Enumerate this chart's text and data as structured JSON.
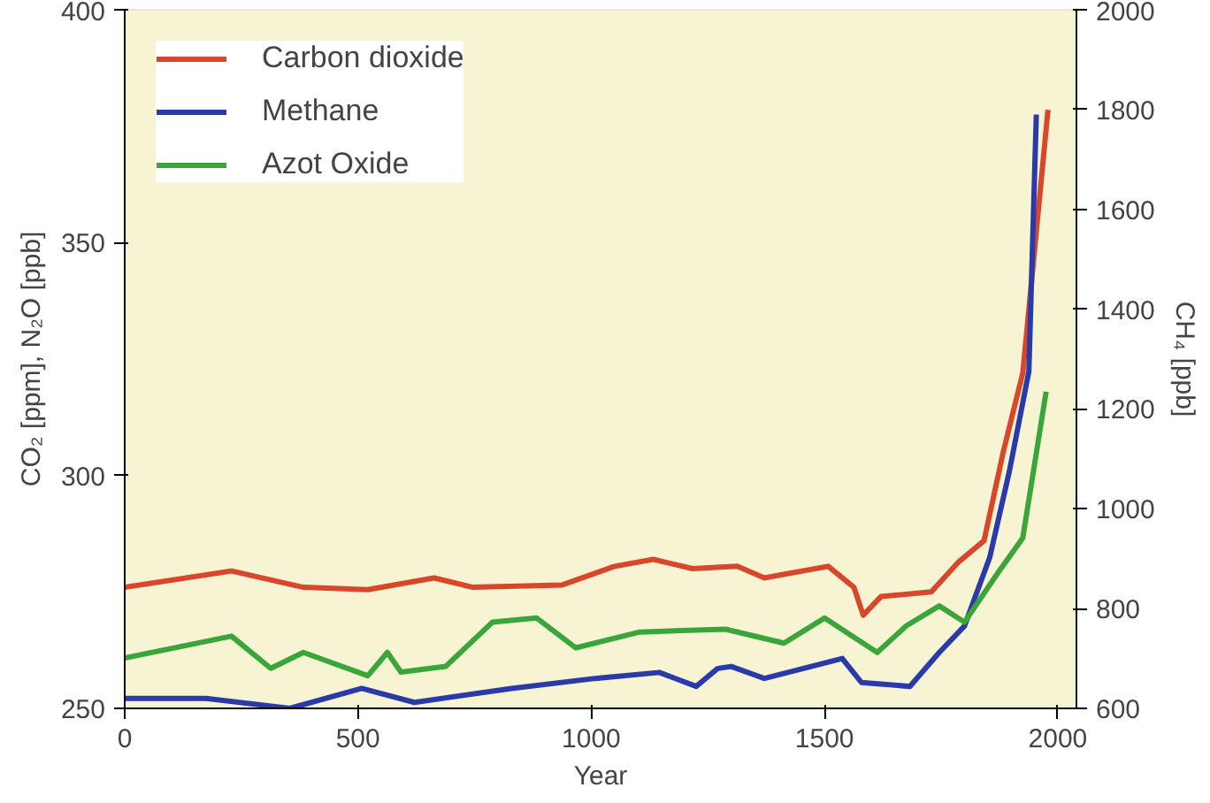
{
  "chart_data": {
    "type": "line",
    "xlabel": "Year",
    "ylabel": "CO₂ [ppm], N₂O [ppb]",
    "y2label": "CH₄ [ppb]",
    "xlim": [
      0,
      2040
    ],
    "xticks": [
      0,
      500,
      1000,
      1500,
      2000
    ],
    "ylim": [
      250,
      400
    ],
    "yticks": [
      250,
      300,
      350,
      400
    ],
    "y2lim": [
      600,
      2000
    ],
    "y2ticks": [
      600,
      800,
      1000,
      1200,
      1400,
      1600,
      1800,
      2000
    ],
    "grid": false,
    "legend": "top left",
    "marker": "none",
    "line_style": "solid",
    "series": [
      {
        "name": "Carbon dioxide",
        "color": "#d9472b",
        "x": [
          0,
          229,
          383,
          521,
          663,
          746,
          938,
          1050,
          1133,
          1217,
          1313,
          1371,
          1425,
          1508,
          1563,
          1583,
          1621,
          1729,
          1788,
          1842,
          1883,
          1925,
          1979
        ],
        "values": [
          276,
          279.5,
          276,
          275.5,
          278,
          276,
          276.5,
          280.5,
          282,
          280,
          280.5,
          278,
          279,
          280.5,
          276,
          270,
          274,
          275,
          281.5,
          286,
          305,
          322,
          378.5
        ]
      },
      {
        "name": "Methane",
        "color": "#2a3aa8",
        "axis": "y2",
        "x": [
          0,
          175,
          354,
          508,
          621,
          829,
          1008,
          1146,
          1225,
          1271,
          1300,
          1371,
          1538,
          1579,
          1683,
          1746,
          1800,
          1854,
          1896,
          1938,
          1954
        ],
        "values": [
          620,
          620,
          600,
          640,
          612,
          640,
          660,
          672,
          644,
          680,
          684,
          660,
          700,
          652,
          644,
          712,
          765,
          902,
          1074,
          1275,
          1790
        ]
      },
      {
        "name": "Azot Oxide",
        "color": "#3aa63a",
        "x": [
          0,
          229,
          313,
          383,
          521,
          563,
          592,
          688,
          788,
          883,
          967,
          1104,
          1288,
          1413,
          1500,
          1613,
          1675,
          1746,
          1800,
          1871,
          1925,
          1975
        ],
        "values": [
          260.8,
          265.5,
          258.6,
          262,
          257,
          262,
          257.8,
          259,
          268.5,
          269.4,
          263,
          266.4,
          267,
          264,
          269.4,
          262,
          267.7,
          272,
          268.5,
          279,
          286.6,
          318
        ]
      }
    ]
  }
}
